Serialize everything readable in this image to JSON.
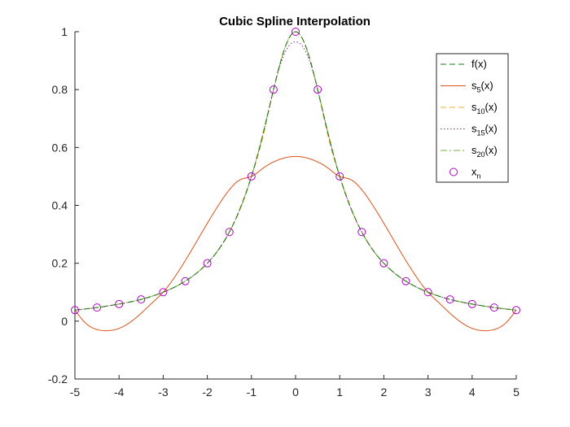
{
  "chart_data": {
    "type": "line",
    "title": "Cubic Spline Interpolation",
    "xlabel": "",
    "ylabel": "",
    "xlim": [
      -5,
      5
    ],
    "ylim": [
      -0.2,
      1
    ],
    "xticks": [
      -5,
      -4,
      -3,
      -2,
      -1,
      0,
      1,
      2,
      3,
      4,
      5
    ],
    "yticks": [
      -0.2,
      0,
      0.2,
      0.4,
      0.6,
      0.8,
      1
    ],
    "xtick_labels": [
      "-5",
      "-4",
      "-3",
      "-2",
      "-1",
      "0",
      "1",
      "2",
      "3",
      "4",
      "5"
    ],
    "ytick_labels": [
      "-0.2",
      "0",
      "0.2",
      "0.4",
      "0.6",
      "0.8",
      "1"
    ],
    "grid": false,
    "legend_position": "top-right",
    "series": [
      {
        "name": "f(x)",
        "legend_main": "f(x)",
        "legend_sub": "",
        "legend_tail": "",
        "color": "#1b7a1b",
        "style": "dashed",
        "function": "1/(1+x^2)",
        "x": [
          -5,
          -4.5,
          -4,
          -3.5,
          -3,
          -2.5,
          -2,
          -1.5,
          -1,
          -0.75,
          -0.5,
          -0.25,
          0,
          0.25,
          0.5,
          0.75,
          1,
          1.5,
          2,
          2.5,
          3,
          3.5,
          4,
          4.5,
          5
        ],
        "y": [
          0.038,
          0.047,
          0.059,
          0.075,
          0.1,
          0.138,
          0.2,
          0.308,
          0.5,
          0.64,
          0.8,
          0.941,
          1,
          0.941,
          0.8,
          0.64,
          0.5,
          0.308,
          0.2,
          0.138,
          0.1,
          0.075,
          0.059,
          0.047,
          0.038
        ]
      },
      {
        "name": "s5(x)",
        "legend_main": "s",
        "legend_sub": "5",
        "legend_tail": "(x)",
        "color": "#d95319",
        "style": "solid",
        "x": [
          -5,
          -4.75,
          -4.5,
          -4.25,
          -4,
          -3.75,
          -3.5,
          -3.25,
          -3,
          -2.75,
          -2.5,
          -2.25,
          -2,
          -1.75,
          -1.5,
          -1.25,
          -1,
          -0.75,
          -0.5,
          -0.25,
          0,
          0.25,
          0.5,
          0.75,
          1,
          1.25,
          1.5,
          1.75,
          2,
          2.25,
          2.5,
          2.75,
          3,
          3.25,
          3.5,
          3.75,
          4,
          4.25,
          4.5,
          4.75,
          5
        ],
        "y": [
          0.038,
          -0.008,
          -0.029,
          -0.033,
          -0.025,
          -0.004,
          0.027,
          0.063,
          0.1,
          0.15,
          0.209,
          0.273,
          0.338,
          0.4,
          0.454,
          0.489,
          0.5,
          0.527,
          0.55,
          0.564,
          0.569,
          0.564,
          0.55,
          0.527,
          0.5,
          0.489,
          0.454,
          0.4,
          0.338,
          0.273,
          0.209,
          0.15,
          0.1,
          0.063,
          0.027,
          -0.004,
          -0.025,
          -0.033,
          -0.029,
          -0.008,
          0.038
        ]
      },
      {
        "name": "s10(x)",
        "legend_main": "s",
        "legend_sub": "10",
        "legend_tail": "(x)",
        "color": "#edb120",
        "style": "dashed",
        "x": [
          -5,
          -4.5,
          -4,
          -3.5,
          -3,
          -2.5,
          -2,
          -1.5,
          -1,
          -0.75,
          -0.5,
          -0.25,
          0,
          0.25,
          0.5,
          0.75,
          1,
          1.5,
          2,
          2.5,
          3,
          3.5,
          4,
          4.5,
          5
        ],
        "y": [
          0.038,
          0.047,
          0.059,
          0.075,
          0.1,
          0.138,
          0.2,
          0.308,
          0.5,
          0.63,
          0.8,
          0.94,
          1,
          0.94,
          0.8,
          0.63,
          0.5,
          0.308,
          0.2,
          0.138,
          0.1,
          0.075,
          0.059,
          0.047,
          0.038
        ]
      },
      {
        "name": "s15(x)",
        "legend_main": "s",
        "legend_sub": "15",
        "legend_tail": "(x)",
        "color": "#7e2f8e",
        "style": "dotted",
        "x": [
          -5,
          -4.5,
          -4,
          -3.5,
          -3,
          -2.5,
          -2,
          -1.5,
          -1,
          -0.75,
          -0.5,
          -0.25,
          0,
          0.25,
          0.5,
          0.75,
          1,
          1.5,
          2,
          2.5,
          3,
          3.5,
          4,
          4.5,
          5
        ],
        "y": [
          0.038,
          0.047,
          0.059,
          0.075,
          0.1,
          0.138,
          0.2,
          0.308,
          0.5,
          0.64,
          0.8,
          0.925,
          0.965,
          0.925,
          0.8,
          0.64,
          0.5,
          0.308,
          0.2,
          0.138,
          0.1,
          0.075,
          0.059,
          0.047,
          0.038
        ]
      },
      {
        "name": "s20(x)",
        "legend_main": "s",
        "legend_sub": "20",
        "legend_tail": "(x)",
        "color": "#77ac30",
        "style": "dashdot",
        "x": [
          -5,
          -4.5,
          -4,
          -3.5,
          -3,
          -2.5,
          -2,
          -1.5,
          -1,
          -0.75,
          -0.5,
          -0.25,
          0,
          0.25,
          0.5,
          0.75,
          1,
          1.5,
          2,
          2.5,
          3,
          3.5,
          4,
          4.5,
          5
        ],
        "y": [
          0.038,
          0.047,
          0.059,
          0.075,
          0.1,
          0.138,
          0.2,
          0.308,
          0.5,
          0.64,
          0.8,
          0.941,
          1,
          0.941,
          0.8,
          0.64,
          0.5,
          0.308,
          0.2,
          0.138,
          0.1,
          0.075,
          0.059,
          0.047,
          0.038
        ]
      },
      {
        "name": "xn",
        "legend_main": "x",
        "legend_sub": "n",
        "legend_tail": "",
        "color": "#b000c8",
        "style": "markers",
        "x": [
          -5,
          -4.5,
          -4,
          -3.5,
          -3,
          -2.5,
          -2,
          -1.5,
          -1,
          -0.5,
          0,
          0.5,
          1,
          1.5,
          2,
          2.5,
          3,
          3.5,
          4,
          4.5,
          5
        ],
        "y": [
          0.038,
          0.047,
          0.059,
          0.075,
          0.1,
          0.138,
          0.2,
          0.308,
          0.5,
          0.8,
          1,
          0.8,
          0.5,
          0.308,
          0.2,
          0.138,
          0.1,
          0.075,
          0.059,
          0.047,
          0.038
        ]
      }
    ]
  }
}
